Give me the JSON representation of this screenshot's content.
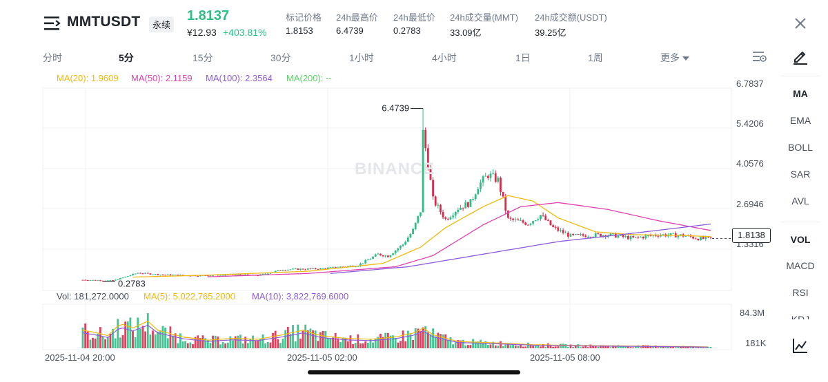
{
  "header": {
    "symbol": "MMTUSDT",
    "contract_type": "永续",
    "last_price": "1.8137",
    "cny_price": "¥12.93",
    "change_pct": "+403.81%",
    "stats": [
      {
        "label": "标记价格",
        "value": "1.8153"
      },
      {
        "label": "24h最高价",
        "value": "6.4739"
      },
      {
        "label": "24h最低价",
        "value": "0.2783"
      },
      {
        "label": "24h成交量(MMT)",
        "value": "33.09亿"
      },
      {
        "label": "24h成交额(USDT)",
        "value": "39.25亿"
      }
    ]
  },
  "timeframes": [
    "分时",
    "5分",
    "15分",
    "30分",
    "1小时",
    "4小时",
    "1日",
    "1周",
    "更多"
  ],
  "active_timeframe": "5分",
  "ma_legend": [
    {
      "label": "MA(20): 1.9609",
      "color": "#f0b90b"
    },
    {
      "label": "MA(50): 2.1159",
      "color": "#e040b0"
    },
    {
      "label": "MA(100): 2.3564",
      "color": "#8e5cd9"
    },
    {
      "label": "MA(200): --",
      "color": "#5bd26a"
    }
  ],
  "volume_legend": [
    {
      "label": "Vol: 181,272.0000",
      "color": "#474d57"
    },
    {
      "label": "MA(5): 5,022,765.2000",
      "color": "#f0b90b"
    },
    {
      "label": "MA(10): 3,822,769.6000",
      "color": "#8e5cd9"
    }
  ],
  "price_axis": [
    "6.7837",
    "5.4206",
    "4.0576",
    "2.6946",
    "1.3316"
  ],
  "volume_axis": [
    "84.3M",
    "181K"
  ],
  "time_axis": [
    "2025-11-04 20:00",
    "2025-11-05 02:00",
    "2025-11-05 08:00"
  ],
  "annotations": {
    "high": "6.4739",
    "low": "0.2783",
    "current_price": "1.8138"
  },
  "watermark": "BINANCE",
  "indicators": {
    "main": [
      "MA",
      "EMA",
      "BOLL",
      "SAR",
      "AVL"
    ],
    "sub": [
      "VOL",
      "MACD",
      "RSI",
      "KDJ"
    ],
    "active_main": "MA",
    "active_sub": "VOL"
  },
  "colors": {
    "up": "#2ebd85",
    "down": "#e0294a",
    "ma20": "#f0b90b",
    "ma50": "#e040b0",
    "ma100": "#8e5cd9"
  },
  "chart_data": {
    "type": "candlestick",
    "x_start": "2025-11-04 18:45",
    "interval": "5m",
    "ylim": [
      0.0,
      7.2
    ],
    "anchors": [
      [
        0,
        0.33
      ],
      [
        12,
        0.3
      ],
      [
        22,
        0.58
      ],
      [
        30,
        0.52
      ],
      [
        45,
        0.48
      ],
      [
        60,
        0.52
      ],
      [
        70,
        0.49
      ],
      [
        80,
        0.7
      ],
      [
        95,
        0.73
      ],
      [
        110,
        0.85
      ],
      [
        118,
        1.25
      ],
      [
        122,
        1.18
      ],
      [
        128,
        1.6
      ],
      [
        132,
        2.1
      ],
      [
        135,
        2.8
      ],
      [
        136,
        5.6
      ],
      [
        138,
        4.5
      ],
      [
        140,
        3.2
      ],
      [
        145,
        2.5
      ],
      [
        150,
        2.9
      ],
      [
        155,
        3.1
      ],
      [
        158,
        3.7
      ],
      [
        162,
        4.1
      ],
      [
        166,
        3.9
      ],
      [
        170,
        2.5
      ],
      [
        178,
        2.35
      ],
      [
        183,
        2.65
      ],
      [
        188,
        2.2
      ],
      [
        195,
        1.9
      ],
      [
        210,
        1.95
      ],
      [
        220,
        1.82
      ],
      [
        230,
        1.95
      ],
      [
        240,
        1.92
      ],
      [
        247,
        1.8
      ],
      [
        251,
        1.82
      ]
    ],
    "ma20_anchors": [
      [
        20,
        0.43
      ],
      [
        50,
        0.5
      ],
      [
        90,
        0.64
      ],
      [
        120,
        0.92
      ],
      [
        135,
        1.5
      ],
      [
        145,
        2.2
      ],
      [
        160,
        2.95
      ],
      [
        170,
        3.35
      ],
      [
        180,
        3.15
      ],
      [
        190,
        2.55
      ],
      [
        205,
        2.05
      ],
      [
        220,
        1.95
      ],
      [
        240,
        1.92
      ],
      [
        251,
        1.88
      ]
    ],
    "ma50_anchors": [
      [
        50,
        0.44
      ],
      [
        90,
        0.56
      ],
      [
        125,
        0.8
      ],
      [
        140,
        1.2
      ],
      [
        160,
        2.3
      ],
      [
        175,
        2.95
      ],
      [
        190,
        3.1
      ],
      [
        210,
        2.85
      ],
      [
        230,
        2.45
      ],
      [
        251,
        2.1
      ]
    ],
    "ma100_anchors": [
      [
        99,
        0.56
      ],
      [
        130,
        0.8
      ],
      [
        160,
        1.25
      ],
      [
        190,
        1.7
      ],
      [
        220,
        2.0
      ],
      [
        251,
        2.33
      ]
    ],
    "volume_anchors": [
      [
        0,
        40
      ],
      [
        5,
        35
      ],
      [
        10,
        28
      ],
      [
        15,
        55
      ],
      [
        20,
        45
      ],
      [
        26,
        60
      ],
      [
        30,
        40
      ],
      [
        40,
        25
      ],
      [
        50,
        18
      ],
      [
        60,
        22
      ],
      [
        70,
        20
      ],
      [
        80,
        30
      ],
      [
        88,
        40
      ],
      [
        95,
        28
      ],
      [
        105,
        22
      ],
      [
        115,
        20
      ],
      [
        125,
        25
      ],
      [
        133,
        35
      ],
      [
        136,
        45
      ],
      [
        140,
        30
      ],
      [
        150,
        15
      ],
      [
        165,
        12
      ],
      [
        180,
        8
      ],
      [
        200,
        6
      ],
      [
        220,
        5
      ],
      [
        240,
        4
      ],
      [
        251,
        3
      ]
    ]
  }
}
